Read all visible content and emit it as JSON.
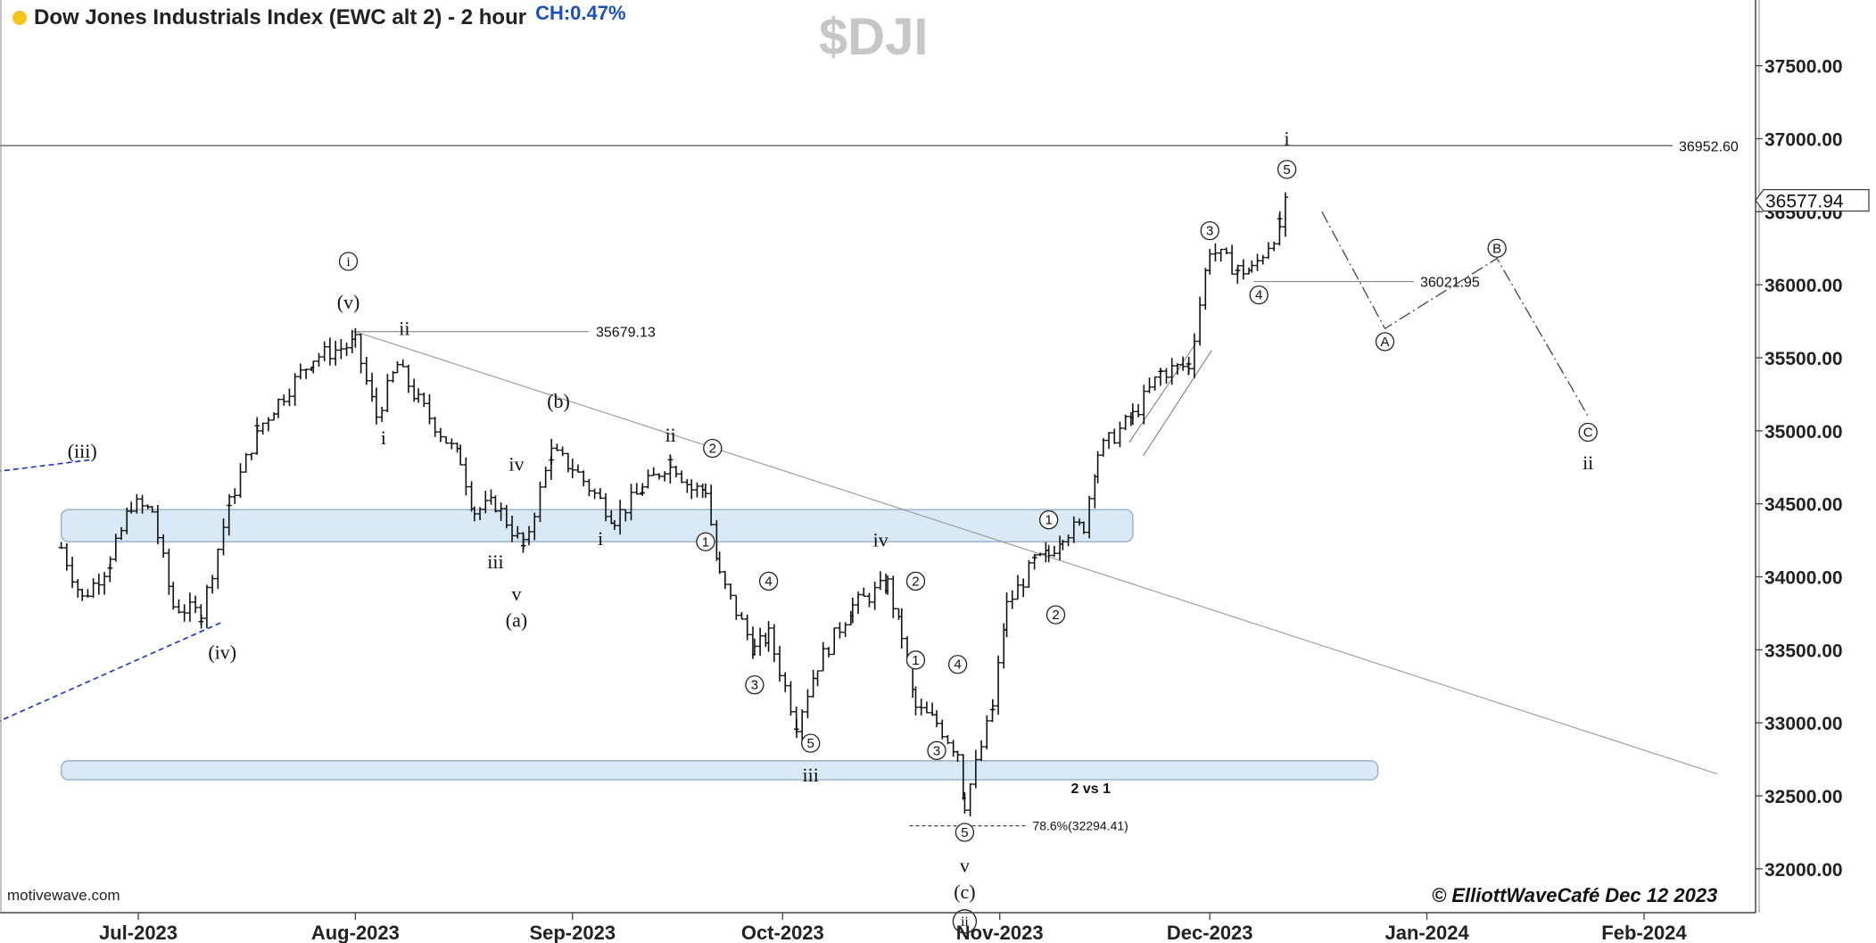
{
  "header": {
    "title": "Dow Jones Industrials Index (EWC alt 2) - 2 hour",
    "change": "CH:0.47%",
    "symbol": "$DJI"
  },
  "footer": {
    "watermark": "motivewave.com",
    "copyright": "© ElliottWaveCafé  Dec 12 2023"
  },
  "colors": {
    "bars": "#111111",
    "zone_fill": "#d9e9f5",
    "zone_stroke": "#9db3c9",
    "channel": "#1f2fd0",
    "axis": "#444444",
    "status_dot": "#f5c518"
  },
  "chart_data": {
    "type": "ohlc",
    "x_ticks": [
      "Jul-2023",
      "Aug-2023",
      "Sep-2023",
      "Oct-2023",
      "Nov-2023",
      "Dec-2023",
      "Jan-2024",
      "Feb-2024"
    ],
    "y_ticks": [
      32000,
      32500,
      33000,
      33500,
      34000,
      34500,
      35000,
      35500,
      36000,
      36500,
      37000,
      37500
    ],
    "y_tick_labels": [
      "32000.00",
      "32500.00",
      "33000.00",
      "33500.00",
      "34000.00",
      "34500.00",
      "35000.00",
      "35500.00",
      "36000.00",
      "36500.00",
      "37000.00",
      "37500.00"
    ],
    "ylim": [
      31700,
      37950
    ],
    "last_price": "36577.94",
    "price_path": [
      [
        "2023-06-20",
        34200
      ],
      [
        "2023-06-23",
        33850
      ],
      [
        "2023-06-27",
        34100
      ],
      [
        "2023-06-30",
        34500
      ],
      [
        "2023-07-03",
        34450
      ],
      [
        "2023-07-06",
        33800
      ],
      [
        "2023-07-10",
        33750
      ],
      [
        "2023-07-14",
        34500
      ],
      [
        "2023-07-18",
        35000
      ],
      [
        "2023-07-21",
        35200
      ],
      [
        "2023-07-26",
        35500
      ],
      [
        "2023-08-01",
        35600
      ],
      [
        "2023-08-04",
        35100
      ],
      [
        "2023-08-07",
        35450
      ],
      [
        "2023-08-10",
        35200
      ],
      [
        "2023-08-16",
        34800
      ],
      [
        "2023-08-18",
        34450
      ],
      [
        "2023-08-21",
        34500
      ],
      [
        "2023-08-25",
        34200
      ],
      [
        "2023-08-29",
        34850
      ],
      [
        "2023-09-01",
        34750
      ],
      [
        "2023-09-07",
        34400
      ],
      [
        "2023-09-11",
        34600
      ],
      [
        "2023-09-15",
        34800
      ],
      [
        "2023-09-18",
        34600
      ],
      [
        "2023-09-20",
        34600
      ],
      [
        "2023-09-22",
        34000
      ],
      [
        "2023-09-27",
        33500
      ],
      [
        "2023-09-29",
        33600
      ],
      [
        "2023-10-03",
        33000
      ],
      [
        "2023-10-06",
        33400
      ],
      [
        "2023-10-11",
        33800
      ],
      [
        "2023-10-16",
        33950
      ],
      [
        "2023-10-18",
        33600
      ],
      [
        "2023-10-20",
        33100
      ],
      [
        "2023-10-23",
        33000
      ],
      [
        "2023-10-26",
        32800
      ],
      [
        "2023-10-27",
        32450
      ],
      [
        "2023-10-31",
        33100
      ],
      [
        "2023-11-02",
        33800
      ],
      [
        "2023-11-06",
        34100
      ],
      [
        "2023-11-08",
        34150
      ],
      [
        "2023-11-10",
        34300
      ],
      [
        "2023-11-13",
        34350
      ],
      [
        "2023-11-15",
        34850
      ],
      [
        "2023-11-20",
        35100
      ],
      [
        "2023-11-24",
        35400
      ],
      [
        "2023-11-28",
        35450
      ],
      [
        "2023-12-01",
        36250
      ],
      [
        "2023-12-05",
        36100
      ],
      [
        "2023-12-07",
        36100
      ],
      [
        "2023-12-11",
        36400
      ],
      [
        "2023-12-12",
        36577.94
      ]
    ],
    "zones": [
      {
        "from": "2023-06-20",
        "to": "2023-11-20",
        "low": 34240,
        "high": 34460
      },
      {
        "from": "2023-06-20",
        "to": "2023-12-25",
        "low": 32610,
        "high": 32740
      }
    ],
    "levels": [
      {
        "label": "36952.60",
        "value": 36952.6
      },
      {
        "label": "35679.13",
        "value": 35679.13
      },
      {
        "label": "36021.95",
        "value": 36021.95
      },
      {
        "label": "78.6%(32294.41)",
        "value": 32294.41
      }
    ],
    "projection": [
      [
        "2023-12-17",
        36500
      ],
      [
        "2023-12-26",
        35700
      ],
      [
        "2024-01-11",
        36180
      ],
      [
        "2024-01-24",
        35100
      ]
    ],
    "wave_labels": [
      {
        "text": "(iii)",
        "date": "2023-06-23",
        "price": 34860
      },
      {
        "text": "(iv)",
        "date": "2023-07-13",
        "price": 33480
      },
      {
        "text": "i",
        "date": "2023-07-31",
        "price": 36160,
        "circled": true
      },
      {
        "text": "(v)",
        "date": "2023-07-31",
        "price": 35880
      },
      {
        "text": "ii",
        "date": "2023-08-08",
        "price": 35700
      },
      {
        "text": "i",
        "date": "2023-08-05",
        "price": 34950
      },
      {
        "text": "iv",
        "date": "2023-08-24",
        "price": 34770
      },
      {
        "text": "iii",
        "date": "2023-08-21",
        "price": 34100
      },
      {
        "text": "v",
        "date": "2023-08-24",
        "price": 33880
      },
      {
        "text": "(a)",
        "date": "2023-08-24",
        "price": 33700
      },
      {
        "text": "(b)",
        "date": "2023-08-30",
        "price": 35200
      },
      {
        "text": "ii",
        "date": "2023-09-15",
        "price": 34970
      },
      {
        "text": "i",
        "date": "2023-09-05",
        "price": 34260
      },
      {
        "text": "2",
        "date": "2023-09-21",
        "price": 34880,
        "circled": true
      },
      {
        "text": "1",
        "date": "2023-09-20",
        "price": 34240,
        "circled": true
      },
      {
        "text": "4",
        "date": "2023-09-29",
        "price": 33970,
        "circled": true
      },
      {
        "text": "3",
        "date": "2023-09-27",
        "price": 33260,
        "circled": true
      },
      {
        "text": "5",
        "date": "2023-10-05",
        "price": 32860,
        "circled": true
      },
      {
        "text": "iii",
        "date": "2023-10-05",
        "price": 32640
      },
      {
        "text": "iv",
        "date": "2023-10-15",
        "price": 34250
      },
      {
        "text": "2",
        "date": "2023-10-20",
        "price": 33970,
        "circled": true
      },
      {
        "text": "1",
        "date": "2023-10-20",
        "price": 33430,
        "circled": true
      },
      {
        "text": "4",
        "date": "2023-10-26",
        "price": 33400,
        "circled": true
      },
      {
        "text": "3",
        "date": "2023-10-23",
        "price": 32810,
        "circled": true
      },
      {
        "text": "2 vs 1",
        "date": "2023-11-14",
        "price": 32560,
        "bold": true
      },
      {
        "text": "5",
        "date": "2023-10-27",
        "price": 32250,
        "circled": true
      },
      {
        "text": "v",
        "date": "2023-10-27",
        "price": 32020
      },
      {
        "text": "(c)",
        "date": "2023-10-27",
        "price": 31840
      },
      {
        "text": "ii",
        "date": "2023-10-27",
        "price": 31640,
        "circled": true
      },
      {
        "text": "1",
        "date": "2023-11-08",
        "price": 34390,
        "circled": true
      },
      {
        "text": "2",
        "date": "2023-11-09",
        "price": 33740,
        "circled": true
      },
      {
        "text": "3",
        "date": "2023-12-01",
        "price": 36370,
        "circled": true
      },
      {
        "text": "4",
        "date": "2023-12-08",
        "price": 35930,
        "circled": true
      },
      {
        "text": "i",
        "date": "2023-12-12",
        "price": 37000
      },
      {
        "text": "5",
        "date": "2023-12-12",
        "price": 36790,
        "circled": true
      },
      {
        "text": "A",
        "date": "2023-12-26",
        "price": 35610,
        "circled": true
      },
      {
        "text": "B",
        "date": "2024-01-11",
        "price": 36250,
        "circled": true
      },
      {
        "text": "C",
        "date": "2024-01-24",
        "price": 34990,
        "circled": true
      },
      {
        "text": "ii",
        "date": "2024-01-24",
        "price": 34780
      }
    ]
  }
}
